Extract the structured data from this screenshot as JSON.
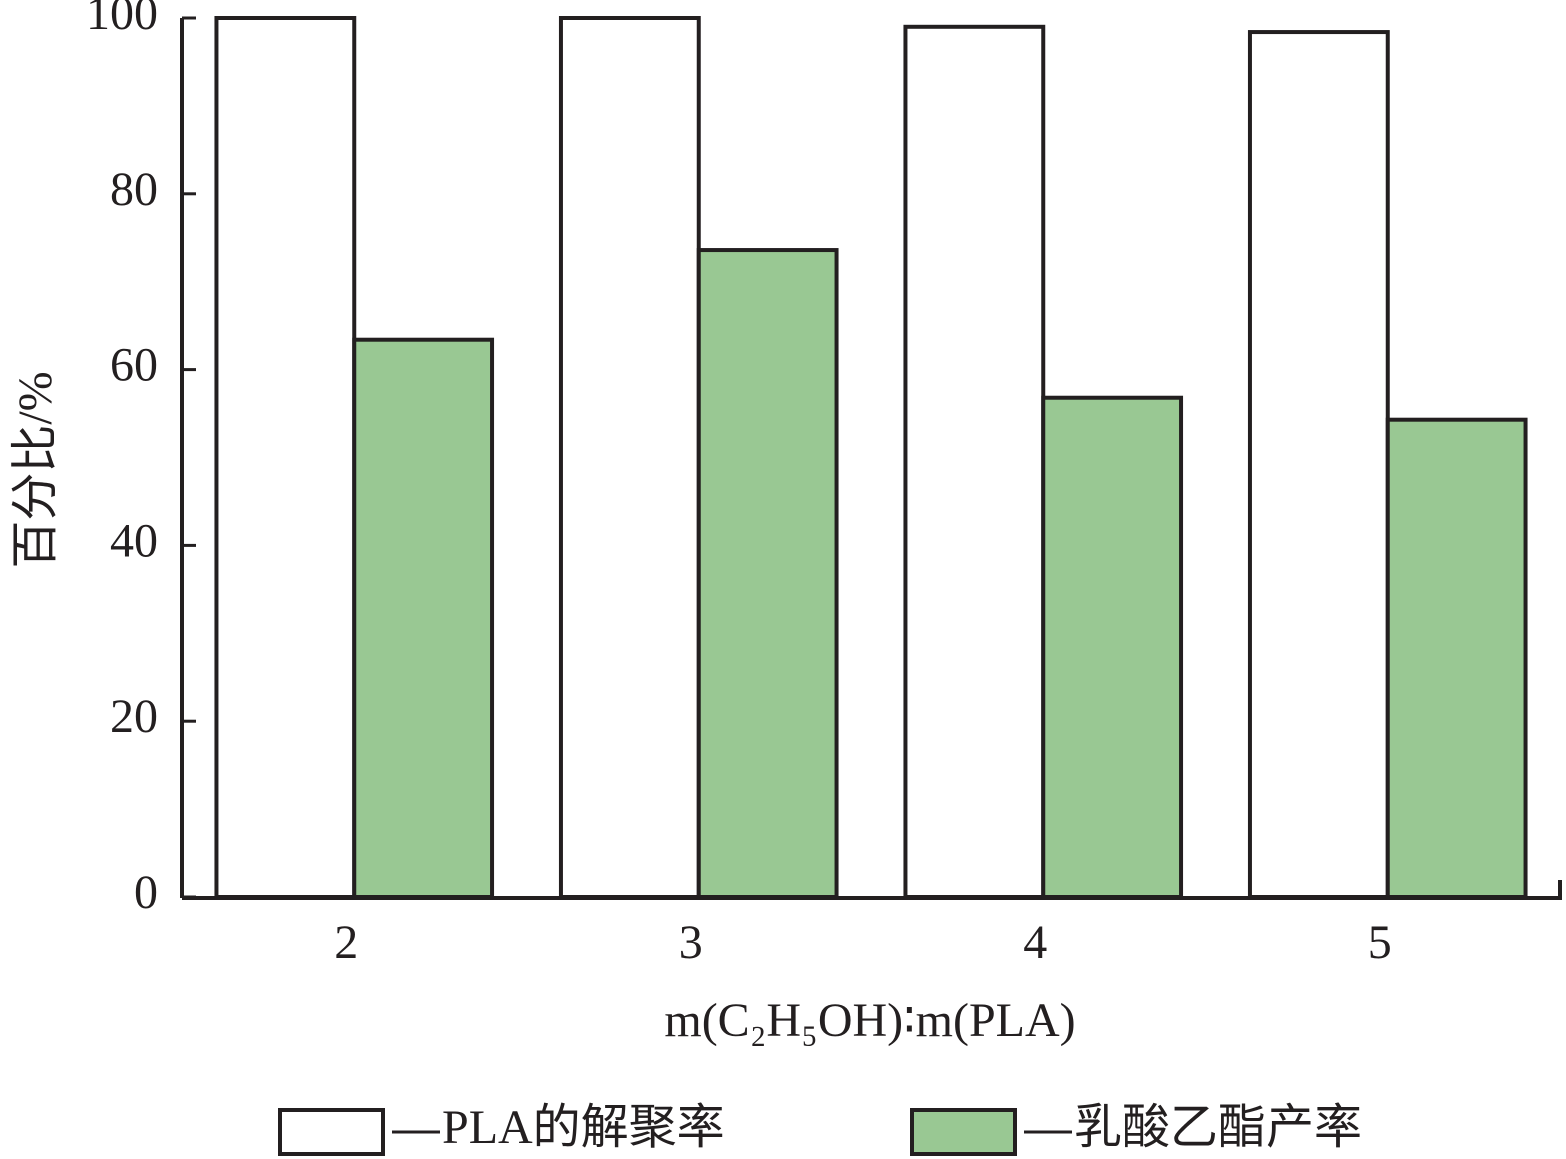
{
  "chart_data": {
    "type": "bar",
    "y_label": "百分比/%",
    "x_label": "m(C₂H₅OH)∶m(PLA)",
    "categories": [
      "2",
      "3",
      "4",
      "5"
    ],
    "series": [
      {
        "name": "PLA的解聚率",
        "color": "#ffffff",
        "values": [
          100,
          100,
          99.0,
          98.4
        ]
      },
      {
        "name": "乳酸乙酯产率",
        "color": "#99c893",
        "values": [
          63.4,
          73.6,
          56.8,
          54.3
        ]
      }
    ],
    "ylim": [
      0,
      100
    ],
    "yticks": [
      0,
      20,
      40,
      60,
      80,
      100
    ]
  }
}
